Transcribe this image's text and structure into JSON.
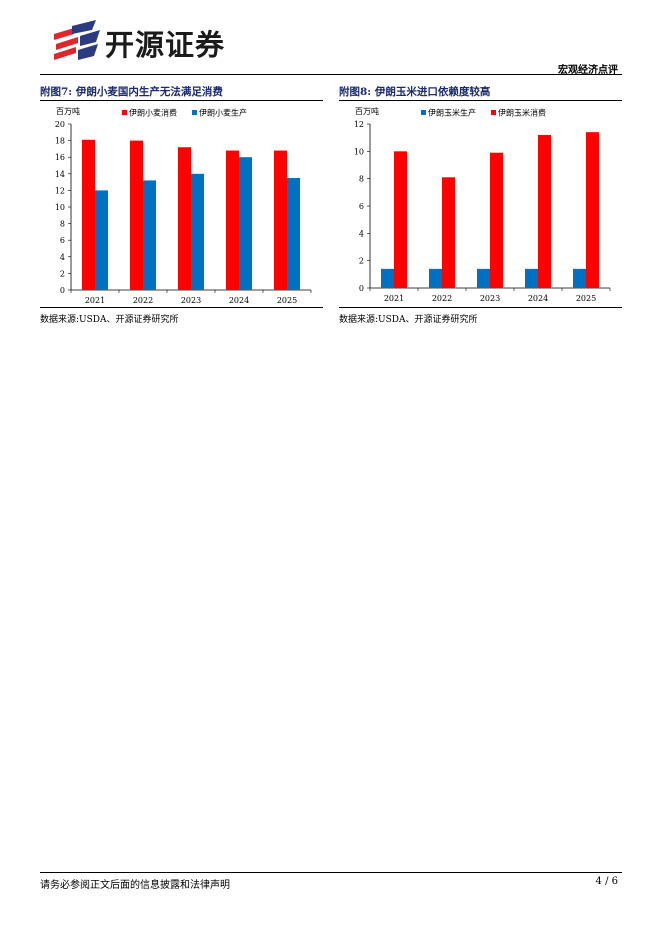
{
  "header": {
    "brand": "开源证券",
    "report_type": "宏观经济点评",
    "colors": {
      "logo_red": "#e0262a",
      "logo_navy": "#2b3b80"
    }
  },
  "figures": [
    {
      "id": "fig7",
      "title": "附图7:  伊朗小麦国内生产无法满足消费",
      "source": "数据来源:USDA、开源证券研究所"
    },
    {
      "id": "fig8",
      "title": "附图8:  伊朗玉米进口依赖度较高",
      "source": "数据来源:USDA、开源证券研究所"
    }
  ],
  "chart_data": [
    {
      "type": "bar",
      "unit_label": "百万吨",
      "categories": [
        "2021",
        "2022",
        "2023",
        "2024",
        "2025"
      ],
      "ylim": [
        0,
        20
      ],
      "yticks": [
        "0",
        "2",
        "4",
        "6",
        "8",
        "10",
        "12",
        "14",
        "16",
        "18",
        "20"
      ],
      "legend_position": "top",
      "grid": false,
      "series": [
        {
          "name": "伊朗小麦消费",
          "color": "#ff0000",
          "values": [
            18.1,
            18.0,
            17.2,
            16.8,
            16.8
          ]
        },
        {
          "name": "伊朗小麦生产",
          "color": "#0070c0",
          "values": [
            12.0,
            13.2,
            14.0,
            16.0,
            13.5
          ]
        }
      ]
    },
    {
      "type": "bar",
      "unit_label": "百万吨",
      "categories": [
        "2021",
        "2022",
        "2023",
        "2024",
        "2025"
      ],
      "ylim": [
        0,
        12
      ],
      "yticks": [
        "0",
        "2",
        "4",
        "6",
        "8",
        "10",
        "12"
      ],
      "legend_position": "top",
      "grid": false,
      "series": [
        {
          "name": "伊朗玉米生产",
          "color": "#0070c0",
          "values": [
            1.4,
            1.4,
            1.4,
            1.4,
            1.4
          ]
        },
        {
          "name": "伊朗玉米消费",
          "color": "#ff0000",
          "values": [
            10.0,
            8.1,
            9.9,
            11.2,
            11.4
          ]
        }
      ]
    }
  ],
  "footer": {
    "disclaimer": "请务必参阅正文后面的信息披露和法律声明",
    "page": "4 / 6"
  }
}
